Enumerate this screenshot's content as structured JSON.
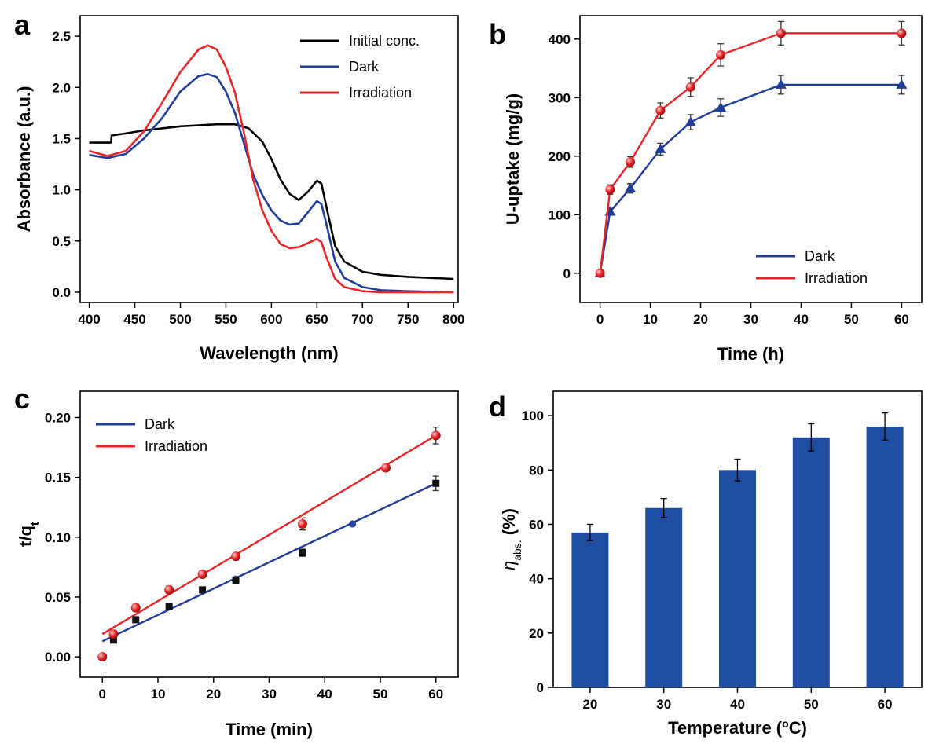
{
  "colors": {
    "black": "#000000",
    "blue": "#1f3d99",
    "red": "#e8262a",
    "bar": "#1f4ea0",
    "dark_marker": "#1a2a80"
  },
  "chart_data": [
    {
      "panel": "a",
      "type": "line",
      "xlabel": "Wavelength (nm)",
      "ylabel": "Absorbance (a.u.)",
      "xlim": [
        390,
        805
      ],
      "ylim": [
        -0.1,
        2.7
      ],
      "xticks": [
        "400",
        "450",
        "500",
        "550",
        "600",
        "650",
        "700",
        "750",
        "800"
      ],
      "yticks": [
        "0.0",
        "0.5",
        "1.0",
        "1.5",
        "2.0",
        "2.5"
      ],
      "legend_position": "top-right",
      "series": [
        {
          "name": "Initial conc.",
          "color": "#000000",
          "x": [
            400,
            420,
            424,
            424.5,
            440,
            460,
            480,
            500,
            520,
            540,
            560,
            575,
            590,
            600,
            610,
            620,
            630,
            640,
            650,
            655,
            660,
            670,
            680,
            700,
            720,
            750,
            800
          ],
          "y": [
            1.46,
            1.46,
            1.46,
            1.53,
            1.55,
            1.58,
            1.6,
            1.62,
            1.63,
            1.64,
            1.64,
            1.6,
            1.47,
            1.3,
            1.1,
            0.96,
            0.9,
            0.98,
            1.09,
            1.06,
            0.85,
            0.45,
            0.3,
            0.2,
            0.17,
            0.15,
            0.13
          ]
        },
        {
          "name": "Dark",
          "color": "#1f3d99",
          "x": [
            400,
            420,
            440,
            460,
            480,
            500,
            520,
            530,
            540,
            550,
            560,
            570,
            580,
            590,
            600,
            610,
            620,
            630,
            640,
            650,
            655,
            660,
            670,
            680,
            700,
            720,
            750,
            800
          ],
          "y": [
            1.34,
            1.31,
            1.35,
            1.5,
            1.7,
            1.96,
            2.11,
            2.13,
            2.1,
            1.96,
            1.75,
            1.45,
            1.15,
            0.95,
            0.8,
            0.7,
            0.66,
            0.67,
            0.78,
            0.89,
            0.86,
            0.68,
            0.3,
            0.14,
            0.05,
            0.02,
            0.01,
            0.0
          ]
        },
        {
          "name": "Irradiation",
          "color": "#e8262a",
          "x": [
            400,
            420,
            440,
            460,
            480,
            500,
            520,
            530,
            540,
            550,
            560,
            570,
            580,
            590,
            600,
            610,
            620,
            630,
            640,
            650,
            655,
            660,
            670,
            680,
            700,
            720,
            750,
            800
          ],
          "y": [
            1.38,
            1.33,
            1.38,
            1.57,
            1.85,
            2.15,
            2.37,
            2.41,
            2.37,
            2.2,
            1.95,
            1.55,
            1.1,
            0.8,
            0.6,
            0.47,
            0.43,
            0.44,
            0.48,
            0.52,
            0.49,
            0.35,
            0.13,
            0.05,
            0.01,
            0.0,
            0.0,
            0.0
          ]
        }
      ]
    },
    {
      "panel": "b",
      "type": "line",
      "xlabel": "Time (h)",
      "ylabel": "U-uptake (mg/g)",
      "xlim": [
        -4,
        64
      ],
      "ylim": [
        -50,
        440
      ],
      "xticks": [
        "0",
        "10",
        "20",
        "30",
        "40",
        "50",
        "60"
      ],
      "yticks": [
        "0",
        "100",
        "200",
        "300",
        "400"
      ],
      "legend_position": "bottom-right",
      "series": [
        {
          "name": "Dark",
          "color": "#1f3d99",
          "marker": "triangle",
          "x": [
            0,
            2,
            6,
            12,
            18,
            24,
            36,
            60
          ],
          "y": [
            0,
            105,
            145,
            212,
            258,
            283,
            322,
            322
          ],
          "err": [
            0,
            6,
            8,
            10,
            13,
            15,
            16,
            16
          ]
        },
        {
          "name": "Irradiation",
          "color": "#e8262a",
          "marker": "circle",
          "x": [
            0,
            2,
            6,
            12,
            18,
            24,
            36,
            60
          ],
          "y": [
            0,
            143,
            190,
            278,
            318,
            373,
            410,
            410
          ],
          "err": [
            0,
            8,
            9,
            13,
            16,
            19,
            20,
            20
          ]
        }
      ]
    },
    {
      "panel": "c",
      "type": "scatter",
      "xlabel": "Time (min)",
      "ylabel": "t/q",
      "ylabel_sub": "t",
      "xlim": [
        -4,
        64
      ],
      "ylim": [
        -0.017,
        0.222
      ],
      "xticks": [
        "0",
        "10",
        "20",
        "30",
        "40",
        "50",
        "60"
      ],
      "yticks": [
        "0.00",
        "0.05",
        "0.10",
        "0.15",
        "0.20"
      ],
      "legend_position": "top-left",
      "series": [
        {
          "name": "Dark",
          "color": "#1f3d99",
          "marker": "square",
          "x": [
            2,
            6,
            12,
            18,
            24,
            36,
            60
          ],
          "y": [
            0.014,
            0.031,
            0.042,
            0.056,
            0.064,
            0.087,
            0.145
          ],
          "err": [
            0.002,
            0.002,
            0.002,
            0.002,
            0.002,
            0.003,
            0.006
          ],
          "fit": {
            "x": [
              0,
              60
            ],
            "y": [
              0.013,
              0.145
            ]
          },
          "extra_points": {
            "x": [
              24,
              45
            ],
            "y": [
              0.065,
              0.111
            ]
          }
        },
        {
          "name": "Irradiation",
          "color": "#e8262a",
          "marker": "sphere",
          "x": [
            0,
            2,
            6,
            12,
            18,
            24,
            36,
            51,
            60
          ],
          "y": [
            0.0,
            0.019,
            0.041,
            0.056,
            0.069,
            0.084,
            0.111,
            0.158,
            0.185
          ],
          "err": [
            0,
            0.003,
            0.003,
            0.003,
            0.003,
            0.003,
            0.005,
            0,
            0.007
          ],
          "fit": {
            "x": [
              0,
              60
            ],
            "y": [
              0.019,
              0.185
            ]
          }
        }
      ]
    },
    {
      "panel": "d",
      "type": "bar",
      "xlabel": "Temperature (",
      "xlabel_sup": "o",
      "xlabel_tail": "C)",
      "ylabel_symbol": "η",
      "ylabel_sub": "abs.",
      "ylabel_tail": "(%)",
      "categories": [
        "20",
        "30",
        "40",
        "50",
        "60"
      ],
      "values": [
        57,
        66,
        80,
        92,
        96
      ],
      "err": [
        3,
        3.5,
        4,
        5,
        5
      ],
      "ylim": [
        0,
        109
      ],
      "yticks": [
        "0",
        "20",
        "40",
        "60",
        "80",
        "100"
      ]
    }
  ]
}
